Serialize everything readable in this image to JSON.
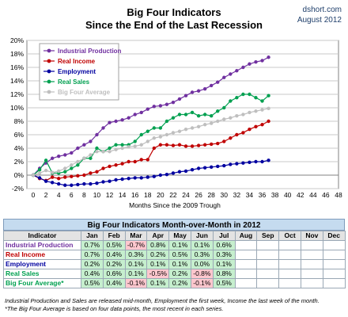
{
  "header": {
    "title_line1": "Big Four Indicators",
    "title_line2": "Since the End of the Last Recession",
    "source": "dshort.com",
    "date": "August 2012"
  },
  "chart_data": {
    "type": "line",
    "xlabel": "Months Since the 2009 Trough",
    "ylabel": "",
    "xlim": [
      -1,
      48
    ],
    "ylim": [
      -2,
      20
    ],
    "xticks": [
      0,
      2,
      4,
      6,
      8,
      10,
      12,
      14,
      16,
      18,
      20,
      22,
      24,
      26,
      28,
      30,
      32,
      34,
      36,
      38,
      40,
      42,
      44,
      46,
      48
    ],
    "yticks": [
      -2,
      0,
      2,
      4,
      6,
      8,
      10,
      12,
      14,
      16,
      18,
      20
    ],
    "ytick_labels": [
      "-2%",
      "0%",
      "2%",
      "4%",
      "6%",
      "8%",
      "10%",
      "12%",
      "14%",
      "16%",
      "18%",
      "20%"
    ],
    "grid": true,
    "legend_placement": "top-left",
    "series": [
      {
        "name": "Industrial Production",
        "color": "#7030a0",
        "values": [
          0,
          1.0,
          1.8,
          2.5,
          2.8,
          3.0,
          3.3,
          4.0,
          4.5,
          5.0,
          6.0,
          7.0,
          7.8,
          8.0,
          8.2,
          8.5,
          9.0,
          9.3,
          9.8,
          10.2,
          10.3,
          10.5,
          10.8,
          11.3,
          11.8,
          12.3,
          12.5,
          12.8,
          13.3,
          13.8,
          14.5,
          15.0,
          15.5,
          16.0,
          16.5,
          16.8,
          17.0,
          17.5
        ]
      },
      {
        "name": "Real Income",
        "color": "#c00000",
        "values": [
          0,
          -0.5,
          -0.8,
          -0.3,
          -0.5,
          -0.3,
          -0.2,
          -0.1,
          0.0,
          0.3,
          0.5,
          1.0,
          1.3,
          1.5,
          1.7,
          2.0,
          2.0,
          2.3,
          2.3,
          4.0,
          4.5,
          4.5,
          4.4,
          4.5,
          4.3,
          4.3,
          4.4,
          4.5,
          4.6,
          4.7,
          5.0,
          5.5,
          6.0,
          6.3,
          6.8,
          7.2,
          7.5,
          8.0
        ]
      },
      {
        "name": "Employment",
        "color": "#0000a0",
        "values": [
          0,
          -0.4,
          -0.9,
          -1.1,
          -1.3,
          -1.5,
          -1.5,
          -1.4,
          -1.3,
          -1.3,
          -1.2,
          -1.0,
          -0.9,
          -0.7,
          -0.6,
          -0.5,
          -0.4,
          -0.4,
          -0.3,
          -0.2,
          0.0,
          0.1,
          0.3,
          0.5,
          0.6,
          0.8,
          1.0,
          1.1,
          1.2,
          1.3,
          1.4,
          1.6,
          1.7,
          1.8,
          1.9,
          2.0,
          2.0,
          2.2
        ]
      },
      {
        "name": "Real Sales",
        "color": "#00a050",
        "values": [
          0,
          0.8,
          2.2,
          0.3,
          0.3,
          0.5,
          1.0,
          1.5,
          2.5,
          2.5,
          4.0,
          3.5,
          4.0,
          4.5,
          4.5,
          4.5,
          5.0,
          6.0,
          6.5,
          7.0,
          7.0,
          8.0,
          8.5,
          9.0,
          9.0,
          9.3,
          8.8,
          9.0,
          8.8,
          9.5,
          10.0,
          11.0,
          11.5,
          12.0,
          12.0,
          11.5,
          11.0,
          11.8
        ]
      },
      {
        "name": "Big Four Average",
        "color": "#bfbfbf",
        "values": [
          0,
          0.3,
          0.7,
          0.4,
          0.6,
          1.0,
          1.5,
          2.0,
          2.5,
          3.0,
          3.5,
          3.5,
          3.5,
          3.8,
          4.0,
          4.2,
          4.3,
          4.5,
          5.0,
          5.5,
          5.7,
          6.0,
          6.3,
          6.5,
          6.8,
          7.0,
          7.2,
          7.5,
          7.7,
          8.0,
          8.3,
          8.5,
          8.8,
          9.0,
          9.3,
          9.5,
          9.7,
          9.9
        ]
      }
    ]
  },
  "table": {
    "title": "Big Four Indicators Month-over-Month in 2012",
    "headers": [
      "Indicator",
      "Jan",
      "Feb",
      "Mar",
      "Apr",
      "May",
      "Jun",
      "Jul",
      "Aug",
      "Sep",
      "Oct",
      "Nov",
      "Dec"
    ],
    "rows": [
      {
        "name": "Industrial Production",
        "color": "#7030a0",
        "cells": [
          "0.7%",
          "0.5%",
          "-0.7%",
          "0.8%",
          "0.1%",
          "0.1%",
          "0.6%",
          "",
          "",
          "",
          "",
          ""
        ]
      },
      {
        "name": "Real Income",
        "color": "#c00000",
        "cells": [
          "0.7%",
          "0.4%",
          "0.3%",
          "0.2%",
          "0.5%",
          "0.3%",
          "0.3%",
          "",
          "",
          "",
          "",
          ""
        ]
      },
      {
        "name": "Employment",
        "color": "#0000a0",
        "cells": [
          "0.2%",
          "0.2%",
          "0.1%",
          "0.1%",
          "0.1%",
          "0.0%",
          "0.1%",
          "",
          "",
          "",
          "",
          ""
        ]
      },
      {
        "name": "Real Sales",
        "color": "#00a050",
        "cells": [
          "0.4%",
          "0.6%",
          "0.1%",
          "-0.5%",
          "0.2%",
          "-0.8%",
          "0.8%",
          "",
          "",
          "",
          "",
          ""
        ]
      },
      {
        "name": "Big Four Average*",
        "color": "#00a050",
        "cells": [
          "0.5%",
          "0.4%",
          "-0.1%",
          "0.1%",
          "0.2%",
          "-0.1%",
          "0.5%",
          "",
          "",
          "",
          "",
          ""
        ]
      }
    ]
  },
  "notes": {
    "line1": "Industrial Production and Sales are released mid-month, Employment the first week, Income the last week of the month.",
    "line2": "*The Big Four Average is based on four data points, the most recent in each series."
  }
}
